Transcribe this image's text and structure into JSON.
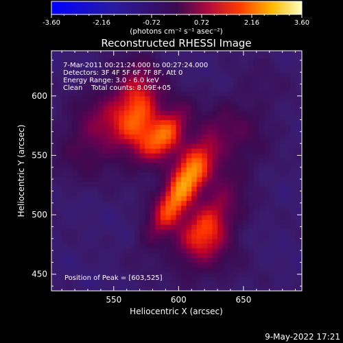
{
  "chart_data": {
    "type": "heatmap",
    "title": "Reconstructed RHESSI Image",
    "xlabel": "Heliocentric X (arcsec)",
    "ylabel": "Heliocentric Y (arcsec)",
    "xlim": [
      502,
      695
    ],
    "ylim": [
      436,
      638
    ],
    "x_ticks": [
      550,
      600,
      650
    ],
    "y_ticks": [
      450,
      500,
      550,
      600
    ],
    "colorbar": {
      "unit_label": "(photons cm⁻² s⁻¹ asec⁻²)",
      "range": [
        -3.6,
        3.6
      ],
      "tick_values": [
        -3.6,
        -2.16,
        -0.72,
        0.72,
        2.16,
        3.6
      ],
      "tick_labels": [
        "-3.60",
        "-2.16",
        "-0.72",
        "0.72",
        "2.16",
        "3.60"
      ]
    },
    "annotations": [
      "7-Mar-2011 00:21:24.000 to 00:27:24.000",
      "Detectors: 3F 4F 5F 6F 7F 8F, Att 0",
      "Energy Range: 3.0 - 6.0 keV",
      "Clean    Total counts: 8.09E+05"
    ],
    "peak_label": "Position of Peak = [603,525]",
    "peak": [
      603,
      525
    ],
    "peak_value": 3.6,
    "background_value": -1.2,
    "sources": [
      {
        "x": 603,
        "y": 525,
        "amp": 3.4,
        "sx": 9,
        "sy": 32,
        "angle_deg": 62
      },
      {
        "x": 592,
        "y": 568,
        "amp": 2.6,
        "sx": 10,
        "sy": 18,
        "angle_deg": 60
      },
      {
        "x": 570,
        "y": 588,
        "amp": 2.0,
        "sx": 28,
        "sy": 12,
        "angle_deg": 0
      },
      {
        "x": 545,
        "y": 575,
        "amp": 1.7,
        "sx": 20,
        "sy": 30,
        "angle_deg": 50
      },
      {
        "x": 622,
        "y": 490,
        "amp": 1.8,
        "sx": 12,
        "sy": 20,
        "angle_deg": 60
      },
      {
        "x": 640,
        "y": 550,
        "amp": 1.0,
        "sx": 18,
        "sy": 45,
        "angle_deg": 70
      },
      {
        "x": 620,
        "y": 470,
        "amp": 0.9,
        "sx": 22,
        "sy": 20,
        "angle_deg": 0
      }
    ]
  },
  "footer": {
    "date_stamp": "9-May-2022 17:21"
  }
}
